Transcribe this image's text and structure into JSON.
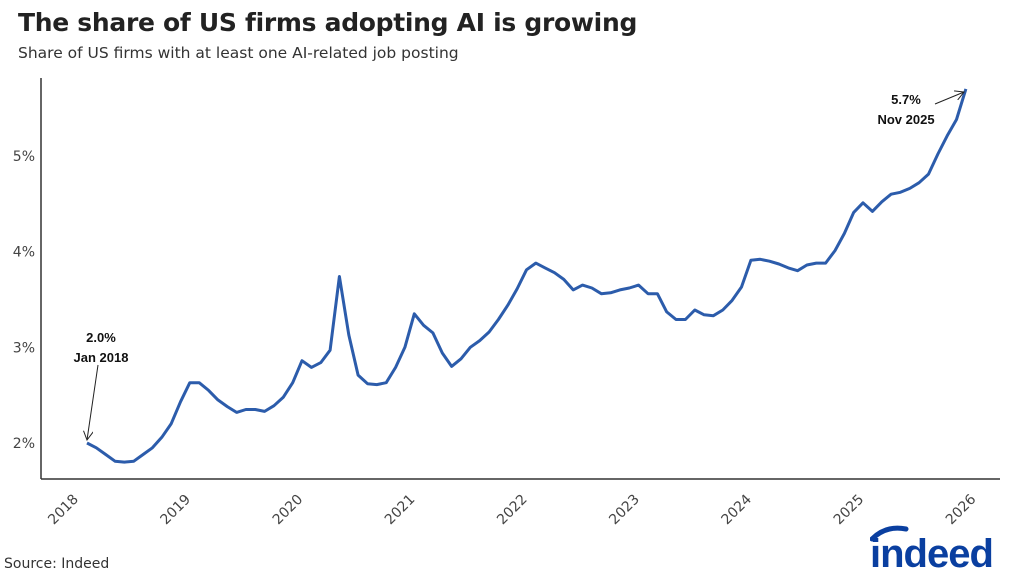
{
  "title": "The share of US firms adopting AI is growing",
  "subtitle": "Share of US firms with at least one AI-related job posting",
  "source": "Source: Indeed",
  "logo": "indeed",
  "colors": {
    "line": "#2c5cab",
    "logo": "#0a3fa0",
    "axis": "#333333"
  },
  "chart_data": {
    "type": "line",
    "title": "The share of US firms adopting AI is growing",
    "subtitle": "Share of US firms with at least one AI-related job posting",
    "xlabel": "",
    "ylabel": "",
    "x_start": "2018-01",
    "frequency": "monthly",
    "ylim": [
      1.6,
      5.9
    ],
    "xlim": [
      "2017-10",
      "2026-02"
    ],
    "grid": false,
    "y_ticks": [
      {
        "value": 2,
        "label": "2%"
      },
      {
        "value": 3,
        "label": "3%"
      },
      {
        "value": 4,
        "label": "4%"
      },
      {
        "value": 5,
        "label": "5%"
      }
    ],
    "x_ticks": [
      "2018",
      "2019",
      "2020",
      "2021",
      "2022",
      "2023",
      "2024",
      "2025",
      "2026"
    ],
    "series": [
      {
        "values": [
          2.0,
          1.95,
          1.88,
          1.81,
          1.8,
          1.81,
          1.88,
          1.95,
          2.06,
          2.2,
          2.43,
          2.63,
          2.63,
          2.55,
          2.45,
          2.38,
          2.32,
          2.35,
          2.35,
          2.33,
          2.39,
          2.48,
          2.63,
          2.86,
          2.79,
          2.84,
          2.97,
          3.74,
          3.13,
          2.71,
          2.62,
          2.61,
          2.63,
          2.79,
          3.0,
          3.35,
          3.23,
          3.15,
          2.94,
          2.8,
          2.88,
          3.0,
          3.07,
          3.16,
          3.29,
          3.44,
          3.61,
          3.81,
          3.88,
          3.83,
          3.78,
          3.71,
          3.6,
          3.65,
          3.62,
          3.56,
          3.57,
          3.6,
          3.62,
          3.65,
          3.56,
          3.56,
          3.37,
          3.29,
          3.29,
          3.39,
          3.34,
          3.33,
          3.39,
          3.49,
          3.63,
          3.91,
          3.92,
          3.9,
          3.87,
          3.83,
          3.8,
          3.86,
          3.88,
          3.88,
          4.01,
          4.19,
          4.41,
          4.51,
          4.42,
          4.52,
          4.6,
          4.62,
          4.66,
          4.72,
          4.81,
          5.02,
          5.21,
          5.38,
          5.7
        ]
      }
    ],
    "annotations": [
      {
        "value_label": "2.0%",
        "date_label": "Jan 2018",
        "month_index": 0,
        "value": 2.0
      },
      {
        "value_label": "5.7%",
        "date_label": "Nov 2025",
        "month_index": 94,
        "value": 5.7
      }
    ]
  }
}
